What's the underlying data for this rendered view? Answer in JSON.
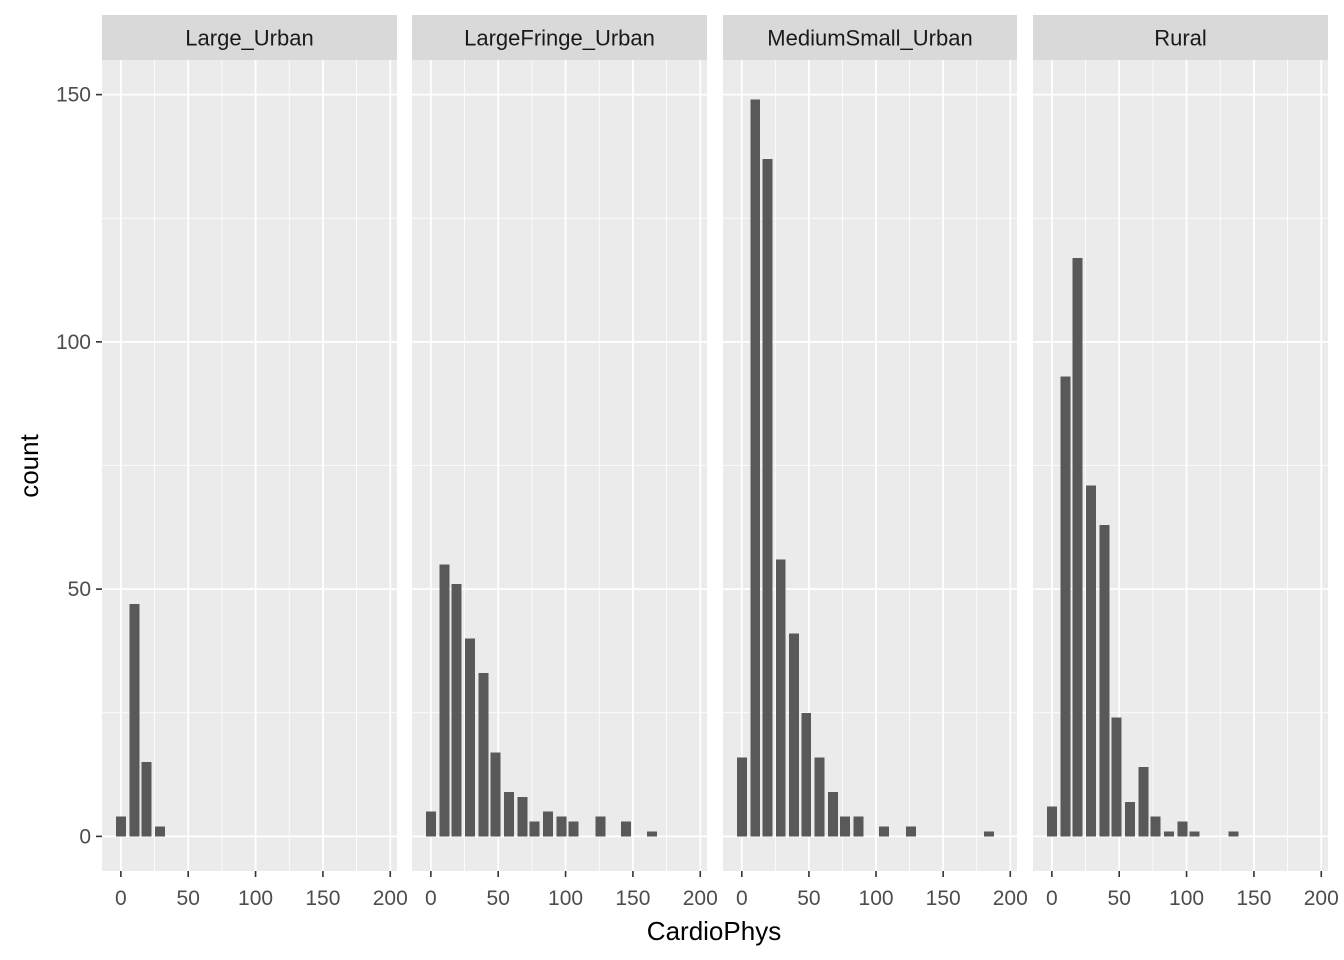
{
  "chart_data": {
    "type": "bar",
    "subtype": "faceted-histogram",
    "xlabel": "CardioPhys",
    "ylabel": "count",
    "xlim": [
      -14,
      205
    ],
    "ylim": [
      -7,
      157
    ],
    "x_ticks": [
      0,
      50,
      100,
      150,
      200
    ],
    "y_ticks": [
      0,
      50,
      100,
      150
    ],
    "bin_width": 7.4,
    "grid": true,
    "legend": "none",
    "colors": {
      "bar": "#595959",
      "panel_background": "#ebebeb",
      "grid": "#ffffff",
      "strip_background": "#d9d9d9",
      "axis_text": "#4d4d4d",
      "tick_mark": "#333333"
    },
    "facets": [
      {
        "label": "Large_Urban",
        "bins": [
          {
            "x": 0,
            "count": 4
          },
          {
            "x": 10,
            "count": 47
          },
          {
            "x": 19,
            "count": 15
          },
          {
            "x": 29,
            "count": 2
          }
        ]
      },
      {
        "label": "LargeFringe_Urban",
        "bins": [
          {
            "x": 0,
            "count": 5
          },
          {
            "x": 10,
            "count": 55
          },
          {
            "x": 19,
            "count": 51
          },
          {
            "x": 29,
            "count": 40
          },
          {
            "x": 39,
            "count": 33
          },
          {
            "x": 48,
            "count": 17
          },
          {
            "x": 58,
            "count": 9
          },
          {
            "x": 68,
            "count": 8
          },
          {
            "x": 77,
            "count": 3
          },
          {
            "x": 87,
            "count": 5
          },
          {
            "x": 97,
            "count": 4
          },
          {
            "x": 106,
            "count": 3
          },
          {
            "x": 126,
            "count": 4
          },
          {
            "x": 145,
            "count": 3
          },
          {
            "x": 164,
            "count": 1
          }
        ]
      },
      {
        "label": "MediumSmall_Urban",
        "bins": [
          {
            "x": 0,
            "count": 16
          },
          {
            "x": 10,
            "count": 149
          },
          {
            "x": 19,
            "count": 137
          },
          {
            "x": 29,
            "count": 56
          },
          {
            "x": 39,
            "count": 41
          },
          {
            "x": 48,
            "count": 25
          },
          {
            "x": 58,
            "count": 16
          },
          {
            "x": 68,
            "count": 9
          },
          {
            "x": 77,
            "count": 4
          },
          {
            "x": 87,
            "count": 4
          },
          {
            "x": 106,
            "count": 2
          },
          {
            "x": 126,
            "count": 2
          },
          {
            "x": 184,
            "count": 1
          }
        ]
      },
      {
        "label": "Rural",
        "bins": [
          {
            "x": 0,
            "count": 6
          },
          {
            "x": 10,
            "count": 93
          },
          {
            "x": 19,
            "count": 117
          },
          {
            "x": 29,
            "count": 71
          },
          {
            "x": 39,
            "count": 63
          },
          {
            "x": 48,
            "count": 24
          },
          {
            "x": 58,
            "count": 7
          },
          {
            "x": 68,
            "count": 14
          },
          {
            "x": 77,
            "count": 4
          },
          {
            "x": 87,
            "count": 1
          },
          {
            "x": 97,
            "count": 3
          },
          {
            "x": 106,
            "count": 1
          },
          {
            "x": 135,
            "count": 1
          }
        ]
      }
    ]
  }
}
